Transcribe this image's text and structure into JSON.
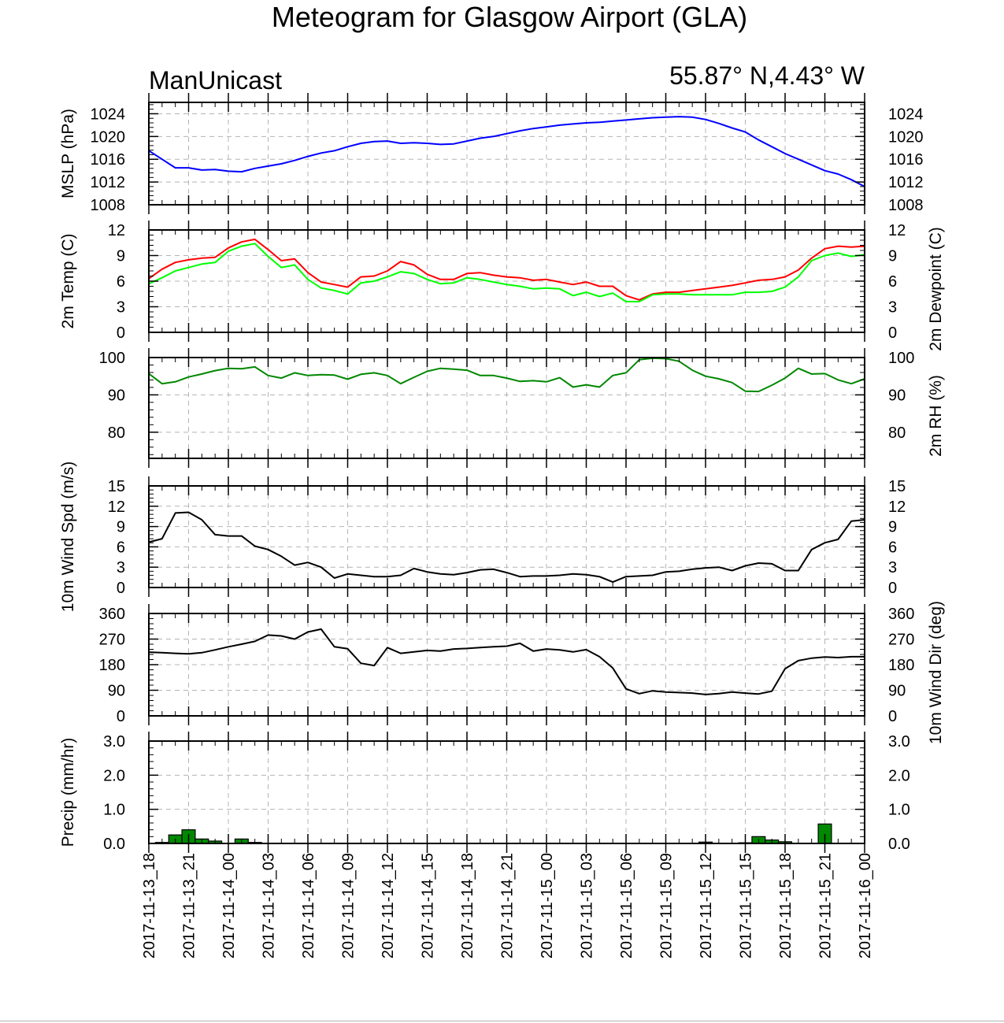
{
  "title": "Meteogram for Glasgow Airport (GLA)",
  "model_label": "ManUnicast",
  "location_label": "55.87° N,4.43° W",
  "colors": {
    "mslp": "#0000ff",
    "temp": "#ff0000",
    "dewpoint": "#00ff00",
    "rh": "#008800",
    "wind": "#000000",
    "precip_fill": "#008800",
    "grid": "#b4b4b4"
  },
  "chart_data": {
    "type": "line",
    "x_tick_labels": [
      "2017-11-13_18",
      "2017-11-13_21",
      "2017-11-14_00",
      "2017-11-14_03",
      "2017-11-14_06",
      "2017-11-14_09",
      "2017-11-14_12",
      "2017-11-14_15",
      "2017-11-14_18",
      "2017-11-14_21",
      "2017-11-15_00",
      "2017-11-15_03",
      "2017-11-15_06",
      "2017-11-15_09",
      "2017-11-15_12",
      "2017-11-15_15",
      "2017-11-15_18",
      "2017-11-15_21",
      "2017-11-16_00"
    ],
    "x_range_hours": [
      0,
      54
    ],
    "x_step_hours": 1,
    "panels": [
      {
        "id": "mslp",
        "ylabel_left": "MSLP (hPa)",
        "ylabel_right": "",
        "ylim": [
          1008,
          1026
        ],
        "ticks": [
          1008,
          1012,
          1016,
          1020,
          1024
        ],
        "tick_labels": [
          "1008",
          "1012",
          "1016",
          "1020",
          "1024"
        ],
        "series": [
          {
            "color_key": "mslp",
            "values": [
              1017.5,
              1016.0,
              1014.5,
              1014.5,
              1014.1,
              1014.2,
              1013.9,
              1013.8,
              1014.4,
              1014.8,
              1015.2,
              1015.8,
              1016.5,
              1017.1,
              1017.5,
              1018.2,
              1018.8,
              1019.1,
              1019.2,
              1018.8,
              1018.9,
              1018.8,
              1018.6,
              1018.7,
              1019.2,
              1019.7,
              1020.0,
              1020.5,
              1021.0,
              1021.4,
              1021.7,
              1022.0,
              1022.2,
              1022.4,
              1022.5,
              1022.7,
              1022.9,
              1023.1,
              1023.3,
              1023.4,
              1023.5,
              1023.4,
              1023.0,
              1022.3,
              1021.5,
              1020.8,
              1019.4,
              1018.2,
              1017.0,
              1016.0,
              1015.0,
              1014.0,
              1013.4,
              1012.4,
              1011.2
            ]
          }
        ]
      },
      {
        "id": "temp",
        "ylabel_left": "2m Temp (C)",
        "ylabel_right": "2m Dewpoint (C)",
        "ylim": [
          0,
          12
        ],
        "ticks": [
          0,
          3,
          6,
          9,
          12
        ],
        "tick_labels": [
          "0",
          "3",
          "6",
          "9",
          "12"
        ],
        "series": [
          {
            "color_key": "temp",
            "values": [
              6.3,
              7.4,
              8.2,
              8.5,
              8.7,
              8.8,
              9.9,
              10.6,
              10.9,
              9.7,
              8.4,
              8.6,
              7.0,
              5.9,
              5.6,
              5.3,
              6.5,
              6.6,
              7.2,
              8.3,
              7.9,
              6.8,
              6.2,
              6.2,
              6.9,
              7.0,
              6.7,
              6.5,
              6.4,
              6.1,
              6.2,
              5.9,
              5.6,
              5.9,
              5.4,
              5.4,
              4.3,
              3.8,
              4.5,
              4.7,
              4.7,
              4.9,
              5.1,
              5.3,
              5.5,
              5.8,
              6.1,
              6.2,
              6.5,
              7.3,
              8.7,
              9.8,
              10.1,
              10.0,
              10.1
            ]
          },
          {
            "color_key": "dewpoint",
            "values": [
              5.7,
              6.4,
              7.2,
              7.6,
              8.0,
              8.2,
              9.5,
              10.1,
              10.4,
              8.9,
              7.6,
              7.9,
              6.2,
              5.2,
              4.9,
              4.5,
              5.8,
              6.0,
              6.5,
              7.1,
              6.9,
              6.2,
              5.7,
              5.8,
              6.4,
              6.2,
              5.9,
              5.6,
              5.4,
              5.1,
              5.2,
              5.1,
              4.3,
              4.7,
              4.2,
              4.6,
              3.6,
              3.6,
              4.4,
              4.5,
              4.5,
              4.4,
              4.4,
              4.4,
              4.4,
              4.7,
              4.7,
              4.8,
              5.3,
              6.5,
              8.4,
              9.0,
              9.3,
              8.9,
              9.1
            ]
          }
        ]
      },
      {
        "id": "rh",
        "ylabel_left": "",
        "ylabel_right": "2m RH (%)",
        "ylim": [
          73,
          100
        ],
        "ticks": [
          80,
          90,
          100
        ],
        "tick_labels": [
          "80",
          "90",
          "100"
        ],
        "series": [
          {
            "color_key": "rh",
            "values": [
              95.7,
              93.0,
              93.5,
              94.8,
              95.6,
              96.5,
              97.1,
              97.0,
              97.5,
              95.2,
              94.5,
              95.9,
              95.2,
              95.4,
              95.3,
              94.2,
              95.5,
              95.9,
              95.2,
              93.0,
              94.7,
              96.3,
              97.1,
              96.9,
              96.6,
              95.2,
              95.2,
              94.5,
              93.6,
              93.8,
              93.5,
              94.6,
              92.1,
              92.7,
              92.1,
              95.2,
              95.9,
              99.4,
              99.8,
              99.7,
              99.0,
              96.6,
              95.0,
              94.3,
              93.3,
              91.0,
              90.9,
              92.6,
              94.5,
              97.1,
              95.6,
              95.7,
              94.0,
              93.0,
              94.3
            ]
          }
        ]
      },
      {
        "id": "wind",
        "ylabel_left": "10m Wind Spd (m/s)",
        "ylabel_right": "",
        "ylim": [
          0,
          15
        ],
        "ticks": [
          0,
          3,
          6,
          9,
          12,
          15
        ],
        "tick_labels": [
          "0",
          "3",
          "6",
          "9",
          "12",
          "15"
        ],
        "series": [
          {
            "color_key": "wind",
            "values": [
              6.7,
              7.2,
              11.0,
              11.1,
              10.0,
              7.8,
              7.6,
              7.6,
              6.1,
              5.6,
              4.6,
              3.3,
              3.7,
              3.0,
              1.4,
              2.0,
              1.8,
              1.6,
              1.6,
              1.8,
              2.8,
              2.3,
              2.0,
              1.9,
              2.2,
              2.6,
              2.7,
              2.2,
              1.6,
              1.7,
              1.7,
              1.8,
              2.0,
              1.9,
              1.6,
              0.8,
              1.6,
              1.7,
              1.8,
              2.3,
              2.4,
              2.7,
              2.9,
              3.0,
              2.5,
              3.2,
              3.6,
              3.5,
              2.5,
              2.5,
              5.6,
              6.6,
              7.1,
              9.8,
              10.0
            ]
          }
        ]
      },
      {
        "id": "winddir",
        "ylabel_left": "",
        "ylabel_right": "10m Wind Dir (deg)",
        "ylim": [
          0,
          360
        ],
        "ticks": [
          0,
          90,
          180,
          270,
          360
        ],
        "tick_labels": [
          "0",
          "90",
          "180",
          "270",
          "360"
        ],
        "series": [
          {
            "color_key": "wind",
            "values": [
              224,
              222,
              220,
              218,
              222,
              232,
              243,
              252,
              262,
              284,
              281,
              270,
              295,
              305,
              243,
              236,
              185,
              177,
              240,
              220,
              225,
              230,
              228,
              235,
              237,
              240,
              243,
              245,
              255,
              228,
              235,
              232,
              225,
              233,
              208,
              168,
              95,
              78,
              88,
              84,
              82,
              80,
              75,
              78,
              84,
              80,
              77,
              87,
              166,
              194,
              203,
              207,
              205,
              208,
              208
            ]
          }
        ]
      },
      {
        "id": "precip",
        "type": "bar",
        "ylabel_left": "Precip (mm/hr)",
        "ylabel_right": "",
        "ylim": [
          0,
          3.0
        ],
        "ticks": [
          0,
          1,
          2,
          3
        ],
        "tick_labels": [
          "0.0",
          "1.0",
          "2.0",
          "3.0"
        ],
        "bars": [
          {
            "x": 1,
            "value": 0.03
          },
          {
            "x": 2,
            "value": 0.25
          },
          {
            "x": 3,
            "value": 0.4
          },
          {
            "x": 4,
            "value": 0.13
          },
          {
            "x": 5,
            "value": 0.07
          },
          {
            "x": 7,
            "value": 0.13
          },
          {
            "x": 8,
            "value": 0.03
          },
          {
            "x": 42,
            "value": 0.04
          },
          {
            "x": 45,
            "value": 0.02
          },
          {
            "x": 46,
            "value": 0.2
          },
          {
            "x": 47,
            "value": 0.1
          },
          {
            "x": 48,
            "value": 0.05
          },
          {
            "x": 51,
            "value": 0.57
          }
        ]
      }
    ]
  }
}
